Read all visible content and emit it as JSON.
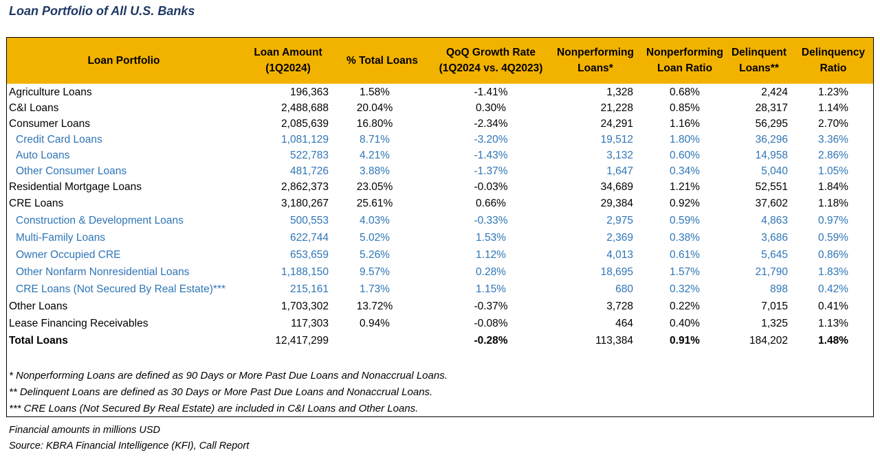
{
  "title": "Loan Portfolio of All U.S. Banks",
  "table": {
    "header": [
      [
        "Loan Portfolio"
      ],
      [
        "Loan Amount",
        "(1Q2024)"
      ],
      [
        "% Total Loans"
      ],
      [
        "QoQ Growth Rate",
        "(1Q2024 vs. 4Q2023)"
      ],
      [
        "Nonperforming",
        "Loans*"
      ],
      [
        "Nonperforming",
        "Loan Ratio"
      ],
      [
        "Delinquent",
        "Loans**"
      ],
      [
        "Delinquency",
        "Ratio"
      ]
    ],
    "rows": [
      [
        "Agriculture Loans",
        "196,363",
        "1.58%",
        "-1.41%",
        "1,328",
        "0.68%",
        "2,424",
        "1.23%"
      ],
      [
        "C&I Loans",
        "2,488,688",
        "20.04%",
        "0.30%",
        "21,228",
        "0.85%",
        "28,317",
        "1.14%"
      ],
      [
        "Consumer Loans",
        "2,085,639",
        "16.80%",
        "-2.34%",
        "24,291",
        "1.16%",
        "56,295",
        "2.70%"
      ],
      [
        "Credit Card Loans",
        "1,081,129",
        "8.71%",
        "-3.20%",
        "19,512",
        "1.80%",
        "36,296",
        "3.36%"
      ],
      [
        "Auto Loans",
        "522,783",
        "4.21%",
        "-1.43%",
        "3,132",
        "0.60%",
        "14,958",
        "2.86%"
      ],
      [
        "Other Consumer Loans",
        "481,726",
        "3.88%",
        "-1.37%",
        "1,647",
        "0.34%",
        "5,040",
        "1.05%"
      ],
      [
        "Residential Mortgage Loans",
        "2,862,373",
        "23.05%",
        "-0.03%",
        "34,689",
        "1.21%",
        "52,551",
        "1.84%"
      ],
      [
        "CRE Loans",
        "3,180,267",
        "25.61%",
        "0.66%",
        "29,384",
        "0.92%",
        "37,602",
        "1.18%"
      ],
      [
        "Construction & Development Loans",
        "500,553",
        "4.03%",
        "-0.33%",
        "2,975",
        "0.59%",
        "4,863",
        "0.97%"
      ],
      [
        "Multi-Family Loans",
        "622,744",
        "5.02%",
        "1.53%",
        "2,369",
        "0.38%",
        "3,686",
        "0.59%"
      ],
      [
        "Owner Occupied CRE",
        "653,659",
        "5.26%",
        "1.12%",
        "4,013",
        "0.61%",
        "5,645",
        "0.86%"
      ],
      [
        "Other Nonfarm Nonresidential Loans",
        "1,188,150",
        "9.57%",
        "0.28%",
        "18,695",
        "1.57%",
        "21,790",
        "1.83%"
      ],
      [
        "CRE Loans (Not Secured By Real Estate)***",
        "215,161",
        "1.73%",
        "1.15%",
        "680",
        "0.32%",
        "898",
        "0.42%"
      ],
      [
        "Other Loans",
        "1,703,302",
        "13.72%",
        "-0.37%",
        "3,728",
        "0.22%",
        "7,015",
        "0.41%"
      ],
      [
        "Lease Financing Receivables",
        "117,303",
        "0.94%",
        "-0.08%",
        "464",
        "0.40%",
        "1,325",
        "1.13%"
      ],
      [
        "Total Loans",
        "12,417,299",
        null,
        "-0.28%",
        "113,384",
        "0.91%",
        "184,202",
        "1.48%"
      ]
    ],
    "footnotes": [
      "* Nonperforming Loans are defined as 90 Days or More Past Due Loans and Nonaccrual Loans.",
      "** Delinquent Loans are defined as 30 Days or More Past Due Loans and Nonaccrual Loans.",
      "*** CRE Loans (Not Secured By Real Estate) are included in C&I Loans and Other Loans."
    ]
  },
  "notes": [
    "Financial amounts in millions USD",
    "Source: KBRA Financial Intelligence (KFI), Call Report"
  ]
}
